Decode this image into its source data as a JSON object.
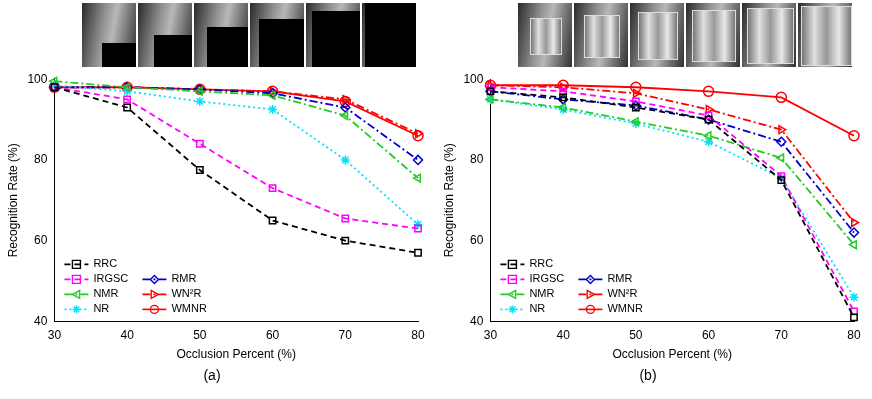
{
  "chart_data": [
    {
      "type": "line",
      "title": "(a)",
      "x_label": "Occlusion Percent (%)",
      "y_label": "Recognition Rate (%)",
      "x": [
        30,
        40,
        50,
        60,
        70,
        80
      ],
      "xlim": [
        30,
        80
      ],
      "xticks": [
        30,
        40,
        50,
        60,
        70,
        80
      ],
      "ylim": [
        40,
        100
      ],
      "yticks": [
        40,
        60,
        80,
        100
      ],
      "grid": false,
      "legend": "lower left",
      "series": [
        {
          "name": "RRC",
          "color": "#000000",
          "marker": "square",
          "line_style": "dashed",
          "values": [
            98,
            93,
            77.5,
            65,
            60,
            57
          ]
        },
        {
          "name": "IRGSC",
          "color": "#ff00ff",
          "marker": "square",
          "line_style": "dashed",
          "values": [
            98,
            95,
            84,
            73,
            65.5,
            63
          ]
        },
        {
          "name": "NMR",
          "color": "#22cc22",
          "marker": "triangle-left",
          "line_style": "dashdot",
          "values": [
            99.5,
            98,
            97,
            96,
            91,
            75.5
          ]
        },
        {
          "name": "NR",
          "color": "#00e0ff",
          "marker": "asterisk",
          "line_style": "dotted",
          "values": [
            98.5,
            97,
            94.5,
            92.5,
            80,
            64
          ]
        },
        {
          "name": "RMR",
          "color": "#0000cc",
          "marker": "diamond",
          "line_style": "dashdot",
          "values": [
            98,
            98,
            97.5,
            96.5,
            93,
            80
          ]
        },
        {
          "name": "WN²R",
          "color": "#ff0000",
          "marker": "triangle-right",
          "line_style": "dashdot",
          "values": [
            98,
            98,
            97.5,
            97,
            95,
            86.5
          ]
        },
        {
          "name": "WMNR",
          "color": "#ff0000",
          "marker": "circle",
          "line_style": "solid",
          "values": [
            98,
            98,
            97.5,
            97,
            94.5,
            86
          ]
        }
      ]
    },
    {
      "type": "line",
      "title": "(b)",
      "x_label": "Occlusion Percent (%)",
      "y_label": "Recognition Rate (%)",
      "x": [
        30,
        40,
        50,
        60,
        70,
        80
      ],
      "xlim": [
        30,
        80
      ],
      "xticks": [
        30,
        40,
        50,
        60,
        70,
        80
      ],
      "ylim": [
        40,
        100
      ],
      "yticks": [
        40,
        60,
        80,
        100
      ],
      "grid": false,
      "legend": "lower left",
      "series": [
        {
          "name": "RRC",
          "color": "#000000",
          "marker": "square",
          "line_style": "dashed",
          "values": [
            97,
            95.5,
            93,
            90,
            75,
            41
          ]
        },
        {
          "name": "IRGSC",
          "color": "#ff00ff",
          "marker": "square",
          "line_style": "dashed",
          "values": [
            98,
            97,
            94.5,
            91,
            76,
            42.5
          ]
        },
        {
          "name": "NMR",
          "color": "#22cc22",
          "marker": "triangle-left",
          "line_style": "dashdot",
          "values": [
            95,
            93,
            89.5,
            86,
            80.5,
            59
          ]
        },
        {
          "name": "NR",
          "color": "#00e0ff",
          "marker": "asterisk",
          "line_style": "dotted",
          "values": [
            95,
            92.5,
            89,
            84.5,
            75.5,
            46
          ]
        },
        {
          "name": "RMR",
          "color": "#0000cc",
          "marker": "diamond",
          "line_style": "dashdot",
          "values": [
            97,
            95,
            93.5,
            90,
            84.5,
            62
          ]
        },
        {
          "name": "WN²R",
          "color": "#ff0000",
          "marker": "triangle-right",
          "line_style": "dashdot",
          "values": [
            98.5,
            98,
            96.5,
            92.5,
            87.5,
            64.5
          ]
        },
        {
          "name": "WMNR",
          "color": "#ff0000",
          "marker": "circle",
          "line_style": "solid",
          "values": [
            98.5,
            98.5,
            98,
            97,
            95.5,
            86
          ]
        }
      ]
    }
  ]
}
